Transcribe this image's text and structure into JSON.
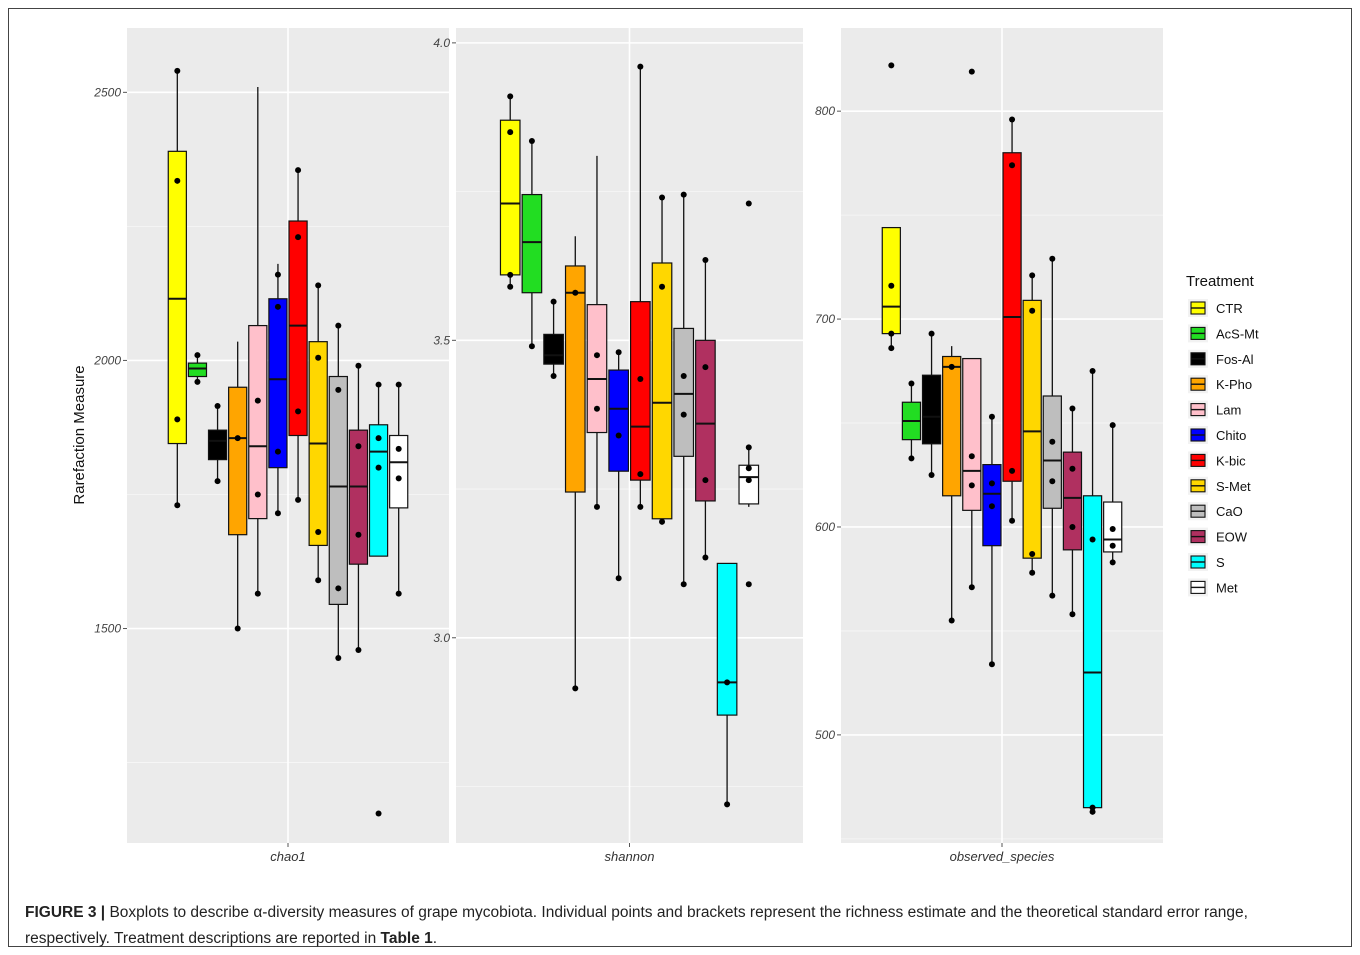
{
  "caption": {
    "label": "FIGURE 3 |",
    "text_before": " Boxplots to describe α-diversity measures of grape mycobiota. Individual points and brackets represent the richness estimate and the theoretical standard error range, respectively. Treatment descriptions are reported in ",
    "table_ref": "Table 1",
    "text_after": "."
  },
  "chart_data": {
    "type": "boxplot",
    "ylabel": "Rarefaction Measure",
    "legend": {
      "title": "Treatment",
      "position": "right",
      "items": [
        {
          "name": "CTR",
          "color": "#ffff00"
        },
        {
          "name": "AcS-Mt",
          "color": "#22dd22"
        },
        {
          "name": "Fos-Al",
          "color": "#000000"
        },
        {
          "name": "K-Pho",
          "color": "#ffa500"
        },
        {
          "name": "Lam",
          "color": "#ffc0cb"
        },
        {
          "name": "Chito",
          "color": "#0000ff"
        },
        {
          "name": "K-bic",
          "color": "#ff0000"
        },
        {
          "name": "S-Met",
          "color": "#ffd700"
        },
        {
          "name": "CaO",
          "color": "#bebebe"
        },
        {
          "name": "EOW",
          "color": "#b03060"
        },
        {
          "name": "S",
          "color": "#00ffff"
        },
        {
          "name": "Met",
          "color": "#ffffff"
        }
      ]
    },
    "panels": [
      {
        "facet": "chao1",
        "ylim": [
          1100,
          2620
        ],
        "yticks": [
          1500,
          2000,
          2500
        ],
        "boxes": [
          {
            "treatment": "CTR",
            "low": 1730,
            "q1": 1845,
            "median": 2115,
            "q3": 2390,
            "high": 2540,
            "points": [
              2540,
              2335,
              1890,
              1730
            ]
          },
          {
            "treatment": "AcS-Mt",
            "low": 1960,
            "q1": 1970,
            "median": 1985,
            "q3": 1995,
            "high": 2010,
            "points": [
              2010,
              1960
            ]
          },
          {
            "treatment": "Fos-Al",
            "low": 1775,
            "q1": 1815,
            "median": 1850,
            "q3": 1870,
            "high": 1915,
            "points": [
              1915,
              1775
            ]
          },
          {
            "treatment": "K-Pho",
            "low": 1500,
            "q1": 1675,
            "median": 1855,
            "q3": 1950,
            "high": 2035,
            "points": [
              1855,
              1500
            ]
          },
          {
            "treatment": "Lam",
            "low": 1565,
            "q1": 1705,
            "median": 1840,
            "q3": 2065,
            "high": 2510,
            "points": [
              1925,
              1750,
              1565
            ]
          },
          {
            "treatment": "Chito",
            "low": 1715,
            "q1": 1800,
            "median": 1965,
            "q3": 2115,
            "high": 2180,
            "points": [
              2160,
              2100,
              1830,
              1715
            ]
          },
          {
            "treatment": "K-bic",
            "low": 1740,
            "q1": 1860,
            "median": 2065,
            "q3": 2260,
            "high": 2355,
            "points": [
              2355,
              2230,
              1905,
              1740
            ]
          },
          {
            "treatment": "S-Met",
            "low": 1590,
            "q1": 1655,
            "median": 1845,
            "q3": 2035,
            "high": 2140,
            "points": [
              2140,
              2005,
              1680,
              1590
            ]
          },
          {
            "treatment": "CaO",
            "low": 1445,
            "q1": 1545,
            "median": 1765,
            "q3": 1970,
            "high": 2065,
            "points": [
              2065,
              1945,
              1575,
              1445
            ]
          },
          {
            "treatment": "EOW",
            "low": 1460,
            "q1": 1620,
            "median": 1765,
            "q3": 1870,
            "high": 1990,
            "points": [
              1990,
              1840,
              1675,
              1460
            ]
          },
          {
            "treatment": "S",
            "low": 1635,
            "q1": 1635,
            "median": 1830,
            "q3": 1880,
            "high": 1955,
            "points": [
              1955,
              1855,
              1800,
              1155
            ]
          },
          {
            "treatment": "Met",
            "low": 1565,
            "q1": 1725,
            "median": 1810,
            "q3": 1860,
            "high": 1955,
            "points": [
              1955,
              1835,
              1780,
              1565
            ]
          }
        ]
      },
      {
        "facet": "shannon",
        "ylim": [
          2.655,
          4.025
        ],
        "yticks": [
          3.0,
          3.5,
          4.0
        ],
        "boxes": [
          {
            "treatment": "CTR",
            "low": 3.59,
            "q1": 3.61,
            "median": 3.73,
            "q3": 3.87,
            "high": 3.91,
            "points": [
              3.91,
              3.85,
              3.61,
              3.59
            ]
          },
          {
            "treatment": "AcS-Mt",
            "low": 3.49,
            "q1": 3.58,
            "median": 3.665,
            "q3": 3.745,
            "high": 3.835,
            "points": [
              3.835,
              3.49
            ]
          },
          {
            "treatment": "Fos-Al",
            "low": 3.44,
            "q1": 3.46,
            "median": 3.475,
            "q3": 3.51,
            "high": 3.565,
            "points": [
              3.565,
              3.44
            ]
          },
          {
            "treatment": "K-Pho",
            "low": 2.915,
            "q1": 3.245,
            "median": 3.58,
            "q3": 3.625,
            "high": 3.675,
            "points": [
              3.58,
              2.915
            ]
          },
          {
            "treatment": "Lam",
            "low": 3.22,
            "q1": 3.345,
            "median": 3.435,
            "q3": 3.56,
            "high": 3.81,
            "points": [
              3.475,
              3.385,
              3.22
            ]
          },
          {
            "treatment": "Chito",
            "low": 3.1,
            "q1": 3.28,
            "median": 3.385,
            "q3": 3.45,
            "high": 3.48,
            "points": [
              3.48,
              3.34,
              3.1
            ]
          },
          {
            "treatment": "K-bic",
            "low": 3.22,
            "q1": 3.265,
            "median": 3.355,
            "q3": 3.565,
            "high": 3.96,
            "points": [
              3.96,
              3.435,
              3.275,
              3.22
            ]
          },
          {
            "treatment": "S-Met",
            "low": 3.19,
            "q1": 3.2,
            "median": 3.395,
            "q3": 3.63,
            "high": 3.74,
            "points": [
              3.74,
              3.59,
              3.195
            ]
          },
          {
            "treatment": "CaO",
            "low": 3.09,
            "q1": 3.305,
            "median": 3.41,
            "q3": 3.52,
            "high": 3.745,
            "points": [
              3.745,
              3.44,
              3.375,
              3.09
            ]
          },
          {
            "treatment": "EOW",
            "low": 3.135,
            "q1": 3.23,
            "median": 3.36,
            "q3": 3.5,
            "high": 3.635,
            "points": [
              3.635,
              3.455,
              3.265,
              3.135
            ]
          },
          {
            "treatment": "S",
            "low": 2.72,
            "q1": 2.87,
            "median": 2.925,
            "q3": 3.125,
            "high": 3.125,
            "points": [
              2.925,
              2.72
            ]
          },
          {
            "treatment": "Met",
            "low": 3.22,
            "q1": 3.225,
            "median": 3.27,
            "q3": 3.29,
            "high": 3.32,
            "points": [
              3.73,
              3.32,
              3.285,
              3.265,
              3.09
            ]
          }
        ]
      },
      {
        "facet": "observed_species",
        "ylim": [
          448,
          840
        ],
        "yticks": [
          500,
          600,
          700,
          800
        ],
        "boxes": [
          {
            "treatment": "CTR",
            "low": 686,
            "q1": 693,
            "median": 706,
            "q3": 744,
            "high": 744,
            "points": [
              822,
              716,
              693,
              686
            ]
          },
          {
            "treatment": "AcS-Mt",
            "low": 633,
            "q1": 642,
            "median": 651,
            "q3": 660,
            "high": 669,
            "points": [
              669,
              633
            ]
          },
          {
            "treatment": "Fos-Al",
            "low": 625,
            "q1": 640,
            "median": 653,
            "q3": 673,
            "high": 693,
            "points": [
              693,
              625
            ]
          },
          {
            "treatment": "K-Pho",
            "low": 555,
            "q1": 615,
            "median": 677,
            "q3": 682,
            "high": 687,
            "points": [
              677,
              555
            ]
          },
          {
            "treatment": "Lam",
            "low": 571,
            "q1": 608,
            "median": 627,
            "q3": 681,
            "high": 681,
            "points": [
              819,
              634,
              620,
              571
            ]
          },
          {
            "treatment": "Chito",
            "low": 534,
            "q1": 591,
            "median": 616,
            "q3": 630,
            "high": 653,
            "points": [
              653,
              621,
              610,
              534
            ]
          },
          {
            "treatment": "K-bic",
            "low": 603,
            "q1": 622,
            "median": 701,
            "q3": 780,
            "high": 796,
            "points": [
              796,
              774,
              627,
              603
            ]
          },
          {
            "treatment": "S-Met",
            "low": 578,
            "q1": 585,
            "median": 646,
            "q3": 709,
            "high": 721,
            "points": [
              721,
              704,
              587,
              578
            ]
          },
          {
            "treatment": "CaO",
            "low": 567,
            "q1": 609,
            "median": 632,
            "q3": 663,
            "high": 729,
            "points": [
              729,
              641,
              622,
              567
            ]
          },
          {
            "treatment": "EOW",
            "low": 558,
            "q1": 589,
            "median": 614,
            "q3": 636,
            "high": 657,
            "points": [
              657,
              628,
              600,
              558
            ]
          },
          {
            "treatment": "S",
            "low": 463,
            "q1": 465,
            "median": 530,
            "q3": 615,
            "high": 675,
            "points": [
              675,
              594,
              465,
              463
            ]
          },
          {
            "treatment": "Met",
            "low": 582,
            "q1": 588,
            "median": 594,
            "q3": 612,
            "high": 649,
            "points": [
              649,
              599,
              591,
              583
            ]
          }
        ]
      }
    ]
  }
}
